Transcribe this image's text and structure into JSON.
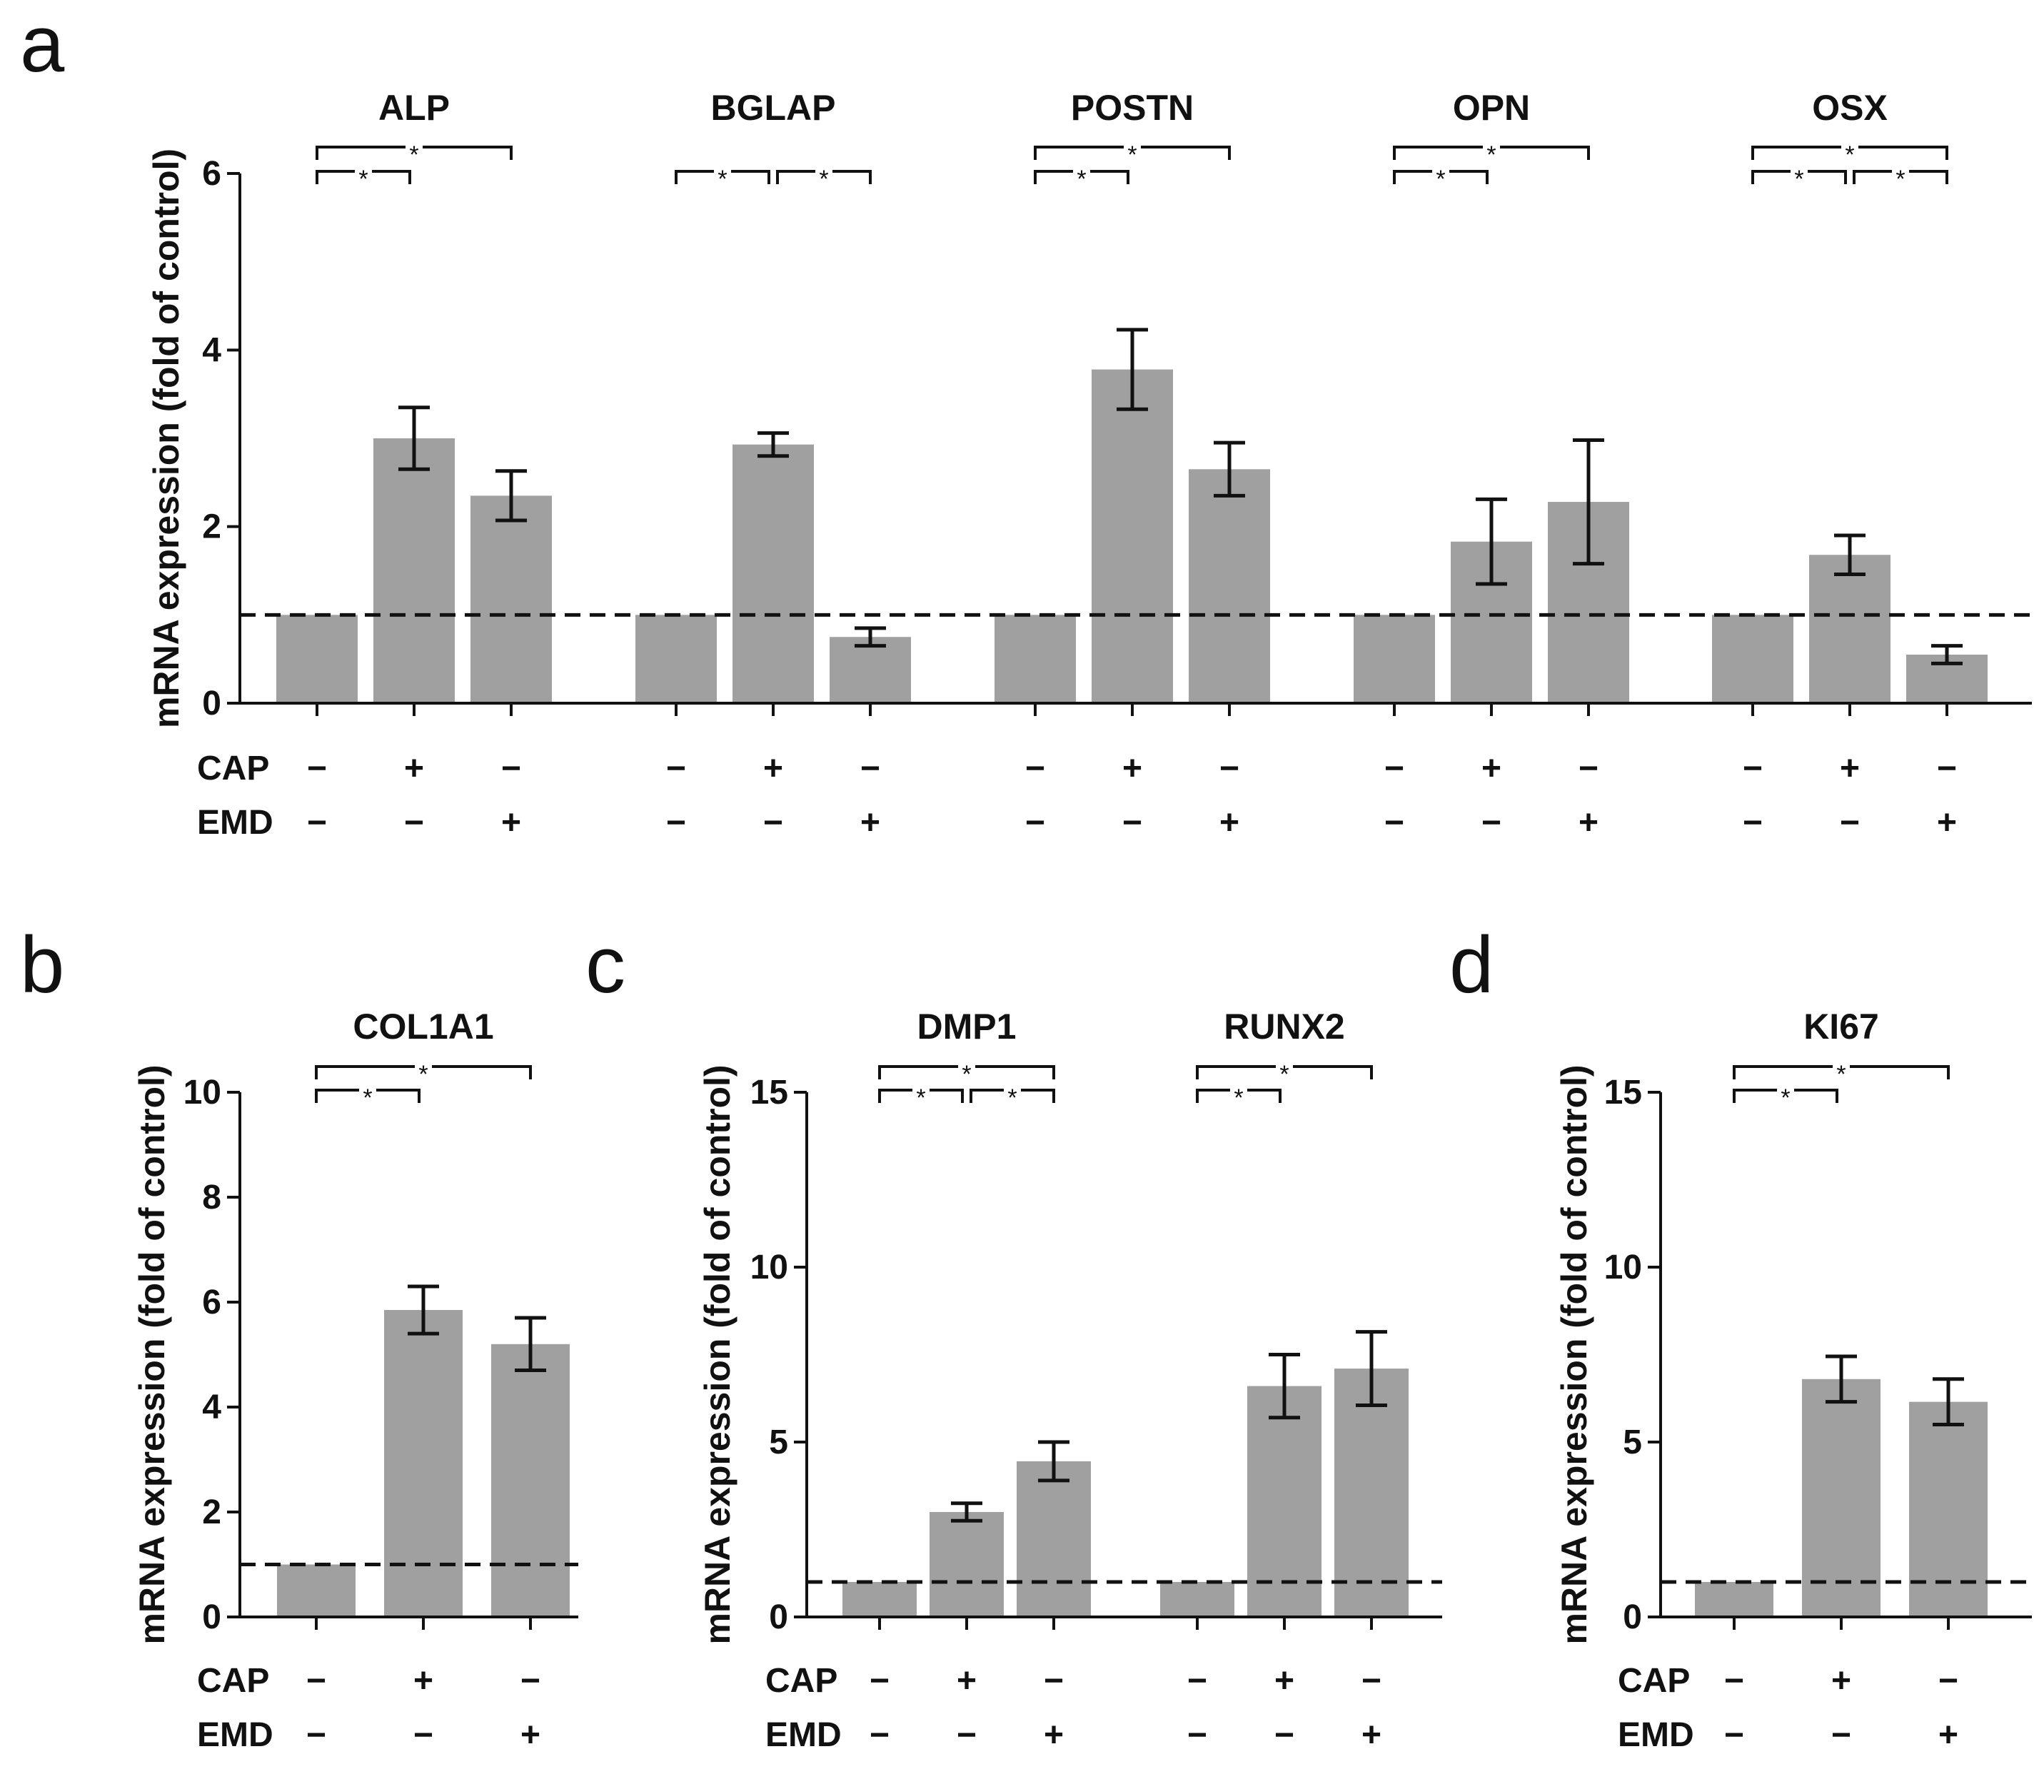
{
  "chart_data": [
    {
      "type": "bar",
      "panel": "a",
      "ylabel": "mRNA expression (fold of  control)",
      "ylim": [
        0,
        6
      ],
      "yticks": [
        0,
        2,
        4,
        6
      ],
      "reference_line": 1,
      "conditions": [
        {
          "label": "CAP",
          "signs": [
            "−",
            "+",
            "−"
          ]
        },
        {
          "label": "EMD",
          "signs": [
            "−",
            "−",
            "+"
          ]
        }
      ],
      "groups": [
        {
          "name": "ALP",
          "values": [
            1.0,
            3.0,
            2.35
          ],
          "errors": [
            0,
            0.35,
            0.28
          ],
          "sig": [
            {
              "from": 0,
              "to": 1,
              "label": "*"
            },
            {
              "from": 0,
              "to": 2,
              "label": "*"
            }
          ]
        },
        {
          "name": "BGLAP",
          "values": [
            1.0,
            2.93,
            0.75
          ],
          "errors": [
            0,
            0.13,
            0.1
          ],
          "sig": [
            {
              "from": 0,
              "to": 1,
              "label": "*"
            },
            {
              "from": 1,
              "to": 2,
              "label": "*"
            }
          ]
        },
        {
          "name": "POSTN",
          "values": [
            1.0,
            3.78,
            2.65
          ],
          "errors": [
            0,
            0.45,
            0.3
          ],
          "sig": [
            {
              "from": 0,
              "to": 1,
              "label": "*"
            },
            {
              "from": 0,
              "to": 2,
              "label": "*"
            }
          ]
        },
        {
          "name": "OPN",
          "values": [
            1.0,
            1.83,
            2.28
          ],
          "errors": [
            0,
            0.48,
            0.7
          ],
          "sig": [
            {
              "from": 0,
              "to": 1,
              "label": "*"
            },
            {
              "from": 0,
              "to": 2,
              "label": "*"
            }
          ]
        },
        {
          "name": "OSX",
          "values": [
            1.0,
            1.68,
            0.55
          ],
          "errors": [
            0,
            0.22,
            0.1
          ],
          "sig": [
            {
              "from": 0,
              "to": 1,
              "label": "*"
            },
            {
              "from": 1,
              "to": 2,
              "label": "*"
            },
            {
              "from": 0,
              "to": 2,
              "label": "*"
            }
          ]
        }
      ]
    },
    {
      "type": "bar",
      "panel": "b",
      "ylabel": "mRNA expression (fold of  control)",
      "ylim": [
        0,
        10
      ],
      "yticks": [
        0,
        2,
        4,
        6,
        8,
        10
      ],
      "reference_line": 1,
      "conditions": [
        {
          "label": "CAP",
          "signs": [
            "−",
            "+",
            "−"
          ]
        },
        {
          "label": "EMD",
          "signs": [
            "−",
            "−",
            "+"
          ]
        }
      ],
      "groups": [
        {
          "name": "COL1A1",
          "values": [
            1.0,
            5.85,
            5.2
          ],
          "errors": [
            0,
            0.45,
            0.5
          ],
          "sig": [
            {
              "from": 0,
              "to": 1,
              "label": "*"
            },
            {
              "from": 0,
              "to": 2,
              "label": "*"
            }
          ]
        }
      ]
    },
    {
      "type": "bar",
      "panel": "c",
      "ylabel": "mRNA expression (fold of  control)",
      "ylim": [
        0,
        15
      ],
      "yticks": [
        0,
        5,
        10,
        15
      ],
      "reference_line": 1,
      "conditions": [
        {
          "label": "CAP",
          "signs": [
            "−",
            "+",
            "−"
          ]
        },
        {
          "label": "EMD",
          "signs": [
            "−",
            "−",
            "+"
          ]
        }
      ],
      "groups": [
        {
          "name": "DMP1",
          "values": [
            1.0,
            3.0,
            4.45
          ],
          "errors": [
            0,
            0.25,
            0.55
          ],
          "sig": [
            {
              "from": 0,
              "to": 1,
              "label": "*"
            },
            {
              "from": 1,
              "to": 2,
              "label": "*"
            },
            {
              "from": 0,
              "to": 2,
              "label": "*"
            }
          ]
        },
        {
          "name": "RUNX2",
          "values": [
            1.0,
            6.6,
            7.1
          ],
          "errors": [
            0,
            0.9,
            1.05
          ],
          "sig": [
            {
              "from": 0,
              "to": 1,
              "label": "*"
            },
            {
              "from": 0,
              "to": 2,
              "label": "*"
            }
          ]
        }
      ]
    },
    {
      "type": "bar",
      "panel": "d",
      "ylabel": "mRNA expression (fold of  control)",
      "ylim": [
        0,
        15
      ],
      "yticks": [
        0,
        5,
        10,
        15
      ],
      "reference_line": 1,
      "conditions": [
        {
          "label": "CAP",
          "signs": [
            "−",
            "+",
            "−"
          ]
        },
        {
          "label": "EMD",
          "signs": [
            "−",
            "−",
            "+"
          ]
        }
      ],
      "groups": [
        {
          "name": "KI67",
          "values": [
            1.0,
            6.8,
            6.15
          ],
          "errors": [
            0,
            0.65,
            0.65
          ],
          "sig": [
            {
              "from": 0,
              "to": 1,
              "label": "*"
            },
            {
              "from": 0,
              "to": 2,
              "label": "*"
            }
          ]
        }
      ]
    }
  ],
  "colors": {
    "bar": "#a0a0a1",
    "ink": "#111111"
  }
}
